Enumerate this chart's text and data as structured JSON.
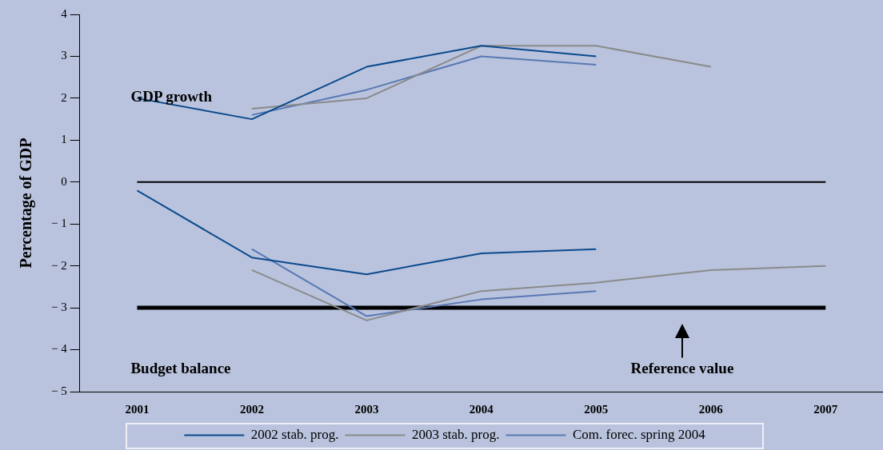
{
  "chart_data": {
    "type": "line",
    "ylabel": "Percentage of GDP",
    "categories": [
      "2001",
      "2002",
      "2003",
      "2004",
      "2005",
      "2006",
      "2007"
    ],
    "series": [
      {
        "name": "2002 stab. prog.",
        "color": "#0b4a8c",
        "values": [
          2.0,
          1.5,
          2.75,
          3.25,
          3.0,
          null,
          null
        ]
      },
      {
        "name": "2003 stab. prog.",
        "color": "#8a8a8a",
        "values": [
          null,
          1.75,
          2.0,
          3.25,
          3.25,
          2.75,
          null
        ]
      },
      {
        "name": "Com. forec. spring 2004",
        "color": "#5878b4",
        "values": [
          null,
          1.6,
          2.2,
          3.0,
          2.8,
          null,
          null
        ]
      },
      {
        "color": "#0b4a8c",
        "values": [
          -0.2,
          -1.8,
          -2.2,
          -1.7,
          -1.6,
          null,
          null
        ]
      },
      {
        "color": "#8a8a8a",
        "values": [
          null,
          -2.1,
          -3.3,
          -2.6,
          -2.4,
          -2.1,
          -2.0
        ]
      },
      {
        "color": "#5878b4",
        "values": [
          null,
          -1.6,
          -3.2,
          -2.8,
          -2.6,
          null,
          null
        ]
      }
    ],
    "ylim": [
      -5,
      4
    ],
    "yticks": [
      {
        "value": -5,
        "label": "− 5"
      },
      {
        "value": -4,
        "label": "− 4"
      },
      {
        "value": -3,
        "label": "− 3"
      },
      {
        "value": -2,
        "label": "− 2"
      },
      {
        "value": -1,
        "label": "− 1"
      },
      0,
      1,
      2,
      3,
      4
    ],
    "ref_lines": [
      {
        "axis": "y",
        "value": 0,
        "color": "#000000"
      },
      {
        "axis": "y",
        "value": -3,
        "color": "#000000"
      }
    ],
    "annotations": [
      "GDP growth",
      "Budget balance",
      "Reference value"
    ],
    "grid": false,
    "legend": "bottom",
    "marker": "none",
    "line_style": "solid"
  }
}
